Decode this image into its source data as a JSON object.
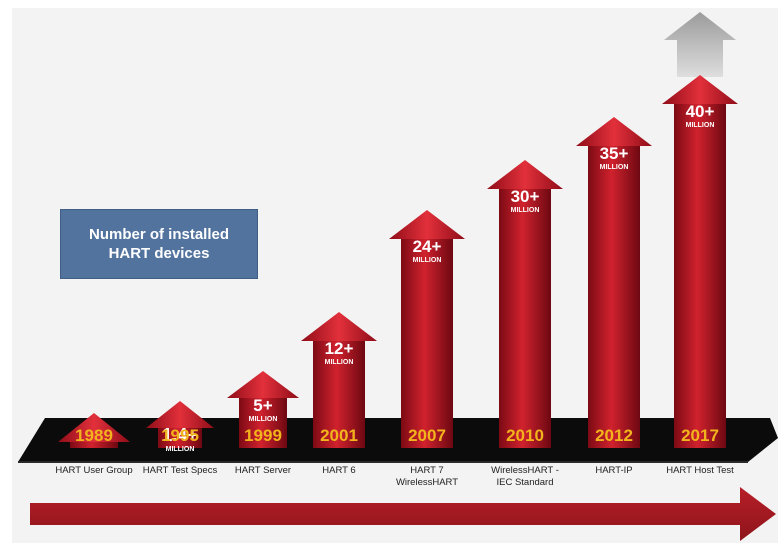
{
  "legend": {
    "text": "Number of installed\nHART devices"
  },
  "colors": {
    "arrow_dark": "#7c0a14",
    "arrow_mid": "#c41e2a",
    "arrow_light": "#e8343f",
    "year_text": "#f2b41c",
    "platform": "#0b0b0b",
    "gray_arrow": "#a9a9a9",
    "timeline": "#c1272d",
    "legend_bg": "#52739e"
  },
  "chart_data": {
    "type": "bar",
    "title": "",
    "xlabel": "",
    "ylabel": "Number of installed HART devices",
    "unit": "MILLION",
    "categories": [
      "1989",
      "1995",
      "1999",
      "2001",
      "2007",
      "2010",
      "2012",
      "2017"
    ],
    "events": [
      "HART User Group",
      "HART Test Specs",
      "HART Server",
      "HART 6",
      "HART 7\nWirelessHART",
      "WirelessHART -\nIEC Standard",
      "HART-IP",
      "HART Host Test"
    ],
    "value_labels": [
      "",
      "1.4+",
      "5+",
      "12+",
      "24+",
      "30+",
      "35+",
      "40+"
    ],
    "unit_labels": [
      "",
      "MILLION",
      "MILLION",
      "MILLION",
      "MILLION",
      "MILLION",
      "MILLION",
      "MILLION"
    ],
    "values": [
      0,
      1.4,
      5,
      12,
      24,
      30,
      35,
      40
    ],
    "growth_indicator": "upward arrow above last bar",
    "timeline_arrow": "rightward"
  }
}
